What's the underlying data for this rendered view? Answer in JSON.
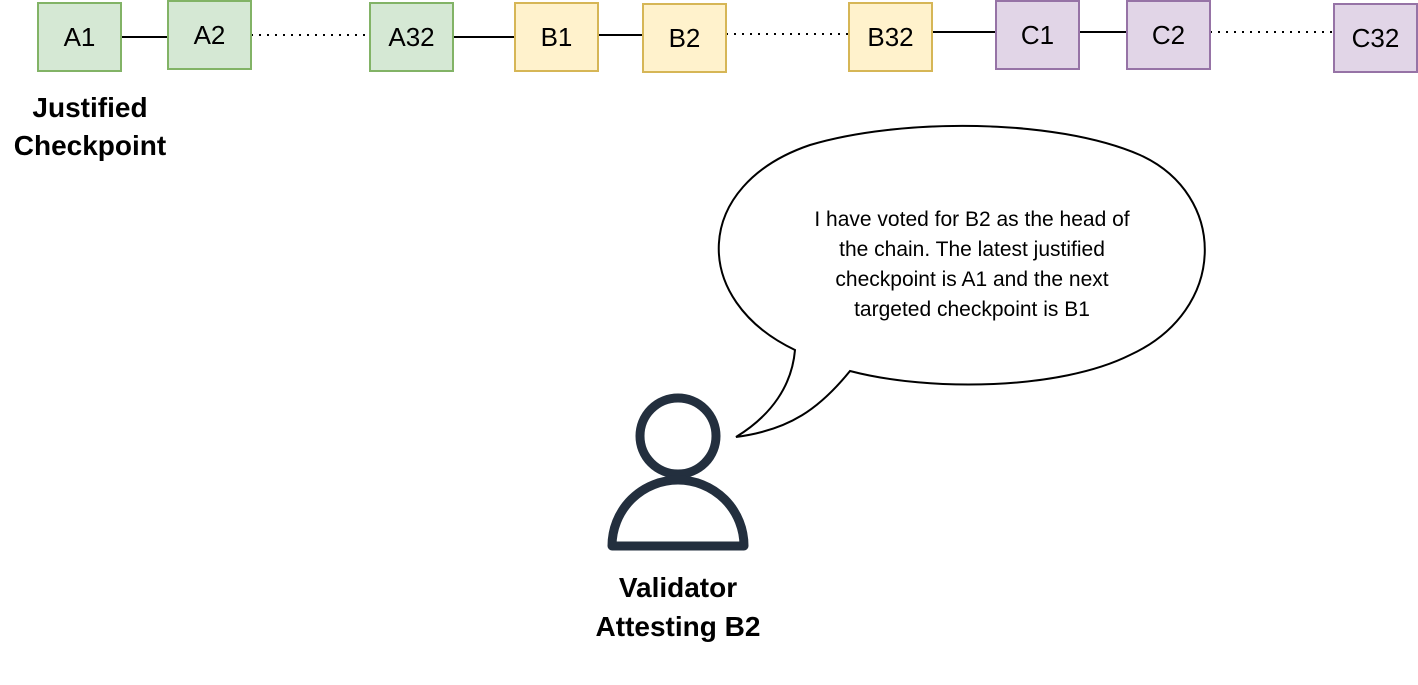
{
  "blocks": [
    {
      "label": "A1",
      "fill": "#d5e8d4",
      "stroke": "#82b366"
    },
    {
      "label": "A2",
      "fill": "#d5e8d4",
      "stroke": "#82b366"
    },
    {
      "label": "A32",
      "fill": "#d5e8d4",
      "stroke": "#82b366"
    },
    {
      "label": "B1",
      "fill": "#fff2cc",
      "stroke": "#d6b656"
    },
    {
      "label": "B2",
      "fill": "#fff2cc",
      "stroke": "#d6b656"
    },
    {
      "label": "B32",
      "fill": "#fff2cc",
      "stroke": "#d6b656"
    },
    {
      "label": "C1",
      "fill": "#e1d5e7",
      "stroke": "#9673a6"
    },
    {
      "label": "C2",
      "fill": "#e1d5e7",
      "stroke": "#9673a6"
    },
    {
      "label": "C32",
      "fill": "#e1d5e7",
      "stroke": "#9673a6"
    }
  ],
  "links": [
    {
      "from": "A1",
      "to": "A2",
      "style": "solid"
    },
    {
      "from": "A2",
      "to": "A32",
      "style": "dotted"
    },
    {
      "from": "A32",
      "to": "B1",
      "style": "solid"
    },
    {
      "from": "B1",
      "to": "B2",
      "style": "solid"
    },
    {
      "from": "B2",
      "to": "B32",
      "style": "dotted"
    },
    {
      "from": "B32",
      "to": "C1",
      "style": "solid"
    },
    {
      "from": "C1",
      "to": "C2",
      "style": "solid"
    },
    {
      "from": "C2",
      "to": "C32",
      "style": "dotted"
    }
  ],
  "justified_checkpoint": {
    "line1": "Justified",
    "line2": "Checkpoint"
  },
  "speech_bubble": {
    "lines": [
      "I have voted for B2 as the head of",
      "the chain. The latest justified",
      "checkpoint is A1 and the next",
      "targeted checkpoint is B1"
    ]
  },
  "validator": {
    "icon": "person-icon",
    "icon_color": "#232f3e",
    "line1": "Validator",
    "line2": "Attesting B2"
  }
}
